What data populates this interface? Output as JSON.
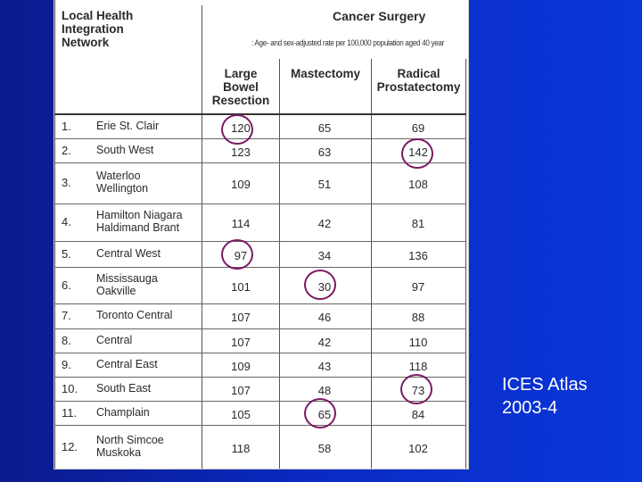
{
  "table": {
    "header_left": "Local Health Integration Network",
    "header_left_lines": [
      "Local Health",
      "Integration",
      "Network"
    ],
    "title": "Cancer Surgery",
    "note": ": Age- and sex-adjusted rate per 100,000 population aged 40 year",
    "columns": [
      {
        "lines": [
          "Large",
          "Bowel",
          "Resection"
        ]
      },
      {
        "lines": [
          "Mastectomy"
        ]
      },
      {
        "lines": [
          "Radical",
          "Prostatectomy"
        ]
      }
    ],
    "rows": [
      {
        "num": "1.",
        "region": [
          "Erie St. Clair"
        ],
        "values": [
          "120",
          "65",
          "69"
        ]
      },
      {
        "num": "2.",
        "region": [
          "South West"
        ],
        "values": [
          "123",
          "63",
          "142"
        ]
      },
      {
        "num": "3.",
        "region": [
          "Waterloo",
          "Wellington"
        ],
        "values": [
          "109",
          "51",
          "108"
        ]
      },
      {
        "num": "4.",
        "region": [
          "Hamilton Niagara",
          "Haldimand Brant"
        ],
        "values": [
          "114",
          "42",
          "81"
        ]
      },
      {
        "num": "5.",
        "region": [
          "Central West"
        ],
        "values": [
          "97",
          "34",
          "136"
        ]
      },
      {
        "num": "6.",
        "region": [
          "Mississauga",
          "Oakville"
        ],
        "values": [
          "101",
          "30",
          "97"
        ]
      },
      {
        "num": "7.",
        "region": [
          "Toronto Central"
        ],
        "values": [
          "107",
          "46",
          "88"
        ]
      },
      {
        "num": "8.",
        "region": [
          "Central"
        ],
        "values": [
          "107",
          "42",
          "110"
        ]
      },
      {
        "num": "9.",
        "region": [
          "Central East"
        ],
        "values": [
          "109",
          "43",
          "118"
        ]
      },
      {
        "num": "10.",
        "region": [
          "South East"
        ],
        "values": [
          "107",
          "48",
          "73"
        ]
      },
      {
        "num": "11.",
        "region": [
          "Champlain"
        ],
        "values": [
          "105",
          "65",
          "84"
        ]
      },
      {
        "num": "12.",
        "region": [
          "North Simcoe",
          "Muskoka"
        ],
        "values": [
          "118",
          "58",
          "102"
        ]
      }
    ],
    "highlight_color": "#7a1a62"
  },
  "caption": {
    "line1": "ICES Atlas",
    "line2": "2003-4"
  }
}
